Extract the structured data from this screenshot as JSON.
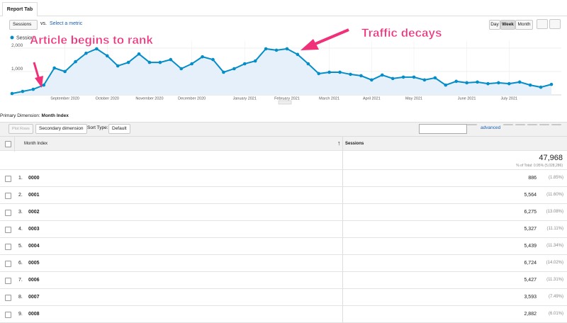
{
  "header": {
    "tab": "Report Tab",
    "metric": "Sessions",
    "vs": "vs.",
    "select_metric": "Select a metric",
    "granularity": [
      "Day",
      "Week",
      "Month"
    ]
  },
  "chart_data": {
    "type": "line",
    "annotations": [
      "Article begins to rank",
      "Traffic decays"
    ],
    "categories": [
      null,
      null,
      null,
      null,
      null,
      "September 2020",
      null,
      null,
      null,
      "October 2020",
      null,
      null,
      null,
      "November 2020",
      null,
      null,
      null,
      "December 2020",
      null,
      null,
      null,
      null,
      "January 2021",
      null,
      null,
      null,
      "February 2021",
      null,
      null,
      null,
      "March 2021",
      null,
      null,
      null,
      "April 2021",
      null,
      null,
      null,
      "May 2021",
      null,
      null,
      null,
      null,
      "June 2021",
      null,
      null,
      null,
      "July 2021",
      null,
      null,
      null,
      null
    ],
    "series": [
      {
        "name": "Sessions",
        "color": "#058dc7",
        "values": [
          60,
          150,
          240,
          420,
          1150,
          1000,
          1420,
          1780,
          1970,
          1670,
          1240,
          1390,
          1750,
          1390,
          1390,
          1510,
          1120,
          1330,
          1630,
          1510,
          970,
          1120,
          1330,
          1450,
          1970,
          1910,
          1970,
          1730,
          1330,
          910,
          970,
          970,
          880,
          820,
          640,
          850,
          700,
          760,
          760,
          640,
          730,
          420,
          580,
          520,
          550,
          480,
          520,
          480,
          550,
          420,
          330,
          450
        ]
      }
    ],
    "ylim": [
      0,
      2300
    ],
    "yticks": [
      {
        "value": 1000,
        "label": "1,000"
      },
      {
        "value": 2000,
        "label": "2,000"
      }
    ],
    "grid": true
  },
  "controls": {
    "primary_label": "Primary Dimension:",
    "primary_value": "Month Index",
    "plot_rows": "Plot Rows",
    "secondary": "Secondary dimension",
    "sort_label": "Sort Type:",
    "sort_value": "Default",
    "advanced": "advanced"
  },
  "table": {
    "headers": [
      "Month Index",
      "Sessions"
    ],
    "total": {
      "value": "47,968",
      "note": "% of Total: 0.95% (5,028,286)"
    },
    "rows": [
      [
        "1.",
        "0000",
        "886",
        "(1.85%)"
      ],
      [
        "2.",
        "0001",
        "5,564",
        "(11.60%)"
      ],
      [
        "3.",
        "0002",
        "6,275",
        "(13.08%)"
      ],
      [
        "4.",
        "0003",
        "5,327",
        "(11.11%)"
      ],
      [
        "5.",
        "0004",
        "5,439",
        "(11.34%)"
      ],
      [
        "6.",
        "0005",
        "6,724",
        "(14.02%)"
      ],
      [
        "7.",
        "0006",
        "5,427",
        "(11.31%)"
      ],
      [
        "8.",
        "0007",
        "3,593",
        "(7.49%)"
      ],
      [
        "9.",
        "0008",
        "2,882",
        "(6.01%)"
      ]
    ]
  }
}
